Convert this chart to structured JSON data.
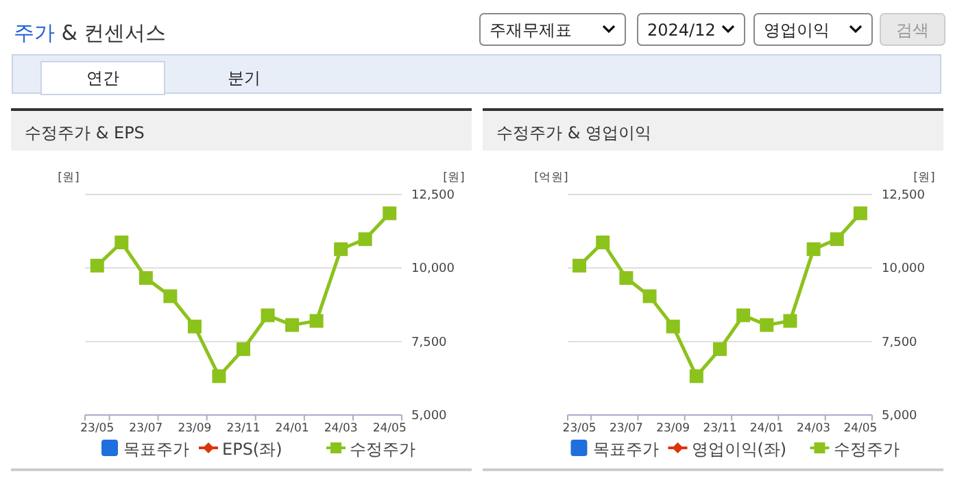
{
  "chart_data": [
    {
      "type": "other",
      "title": "주가 & 컨센서스",
      "annotations": [
        "주재무제표",
        "2024/12",
        "영업이익",
        "검색",
        "연간",
        "분기"
      ]
    },
    {
      "type": "line",
      "title": "수정주가 & EPS",
      "ylabel": "[원]",
      "y2label": "[원]",
      "categories": [
        "23/05",
        null,
        "23/07",
        null,
        "23/09",
        null,
        "23/11",
        null,
        "24/01",
        null,
        "24/03",
        null,
        "24/05"
      ],
      "y2lim": [
        5000,
        12500
      ],
      "y2ticks": [
        {
          "value": 5000,
          "label": "5,000"
        },
        {
          "value": 7500,
          "label": "7,500"
        },
        {
          "value": 10000,
          "label": "10,000"
        },
        {
          "value": 12500,
          "label": "12,500"
        }
      ],
      "grid": true,
      "legend": "bottom",
      "series": [
        {
          "name": "목표주가",
          "color": "#1f6fde",
          "marker": "square",
          "values": [
            null,
            null,
            null,
            null,
            null,
            null,
            null,
            null,
            null,
            null,
            null,
            null,
            null
          ]
        },
        {
          "name": "EPS(좌)",
          "color": "#d9360b",
          "marker": "diamond",
          "values": [
            null,
            null,
            null,
            null,
            null,
            null,
            null,
            null,
            null,
            null,
            null,
            null,
            null
          ]
        },
        {
          "name": "수정주가",
          "color": "#8cc21c",
          "marker": "square",
          "axis": "y2",
          "values": [
            10080,
            10870,
            9660,
            9040,
            8010,
            6320,
            7240,
            8390,
            8060,
            8200,
            10640,
            10980,
            11860
          ]
        }
      ]
    },
    {
      "type": "line",
      "title": "수정주가 & 영업이익",
      "ylabel": "[억원]",
      "y2label": "[원]",
      "categories": [
        "23/05",
        null,
        "23/07",
        null,
        "23/09",
        null,
        "23/11",
        null,
        "24/01",
        null,
        "24/03",
        null,
        "24/05"
      ],
      "y2lim": [
        5000,
        12500
      ],
      "y2ticks": [
        {
          "value": 5000,
          "label": "5,000"
        },
        {
          "value": 7500,
          "label": "7,500"
        },
        {
          "value": 10000,
          "label": "10,000"
        },
        {
          "value": 12500,
          "label": "12,500"
        }
      ],
      "grid": true,
      "legend": "bottom",
      "series": [
        {
          "name": "목표주가",
          "color": "#1f6fde",
          "marker": "square",
          "values": [
            null,
            null,
            null,
            null,
            null,
            null,
            null,
            null,
            null,
            null,
            null,
            null,
            null
          ]
        },
        {
          "name": "영업이익(좌)",
          "color": "#d9360b",
          "marker": "diamond",
          "values": [
            null,
            null,
            null,
            null,
            null,
            null,
            null,
            null,
            null,
            null,
            null,
            null,
            null
          ]
        },
        {
          "name": "수정주가",
          "color": "#8cc21c",
          "marker": "square",
          "axis": "y2",
          "values": [
            10080,
            10870,
            9660,
            9040,
            8010,
            6320,
            7240,
            8390,
            8060,
            8200,
            10640,
            10980,
            11860
          ]
        }
      ]
    }
  ]
}
